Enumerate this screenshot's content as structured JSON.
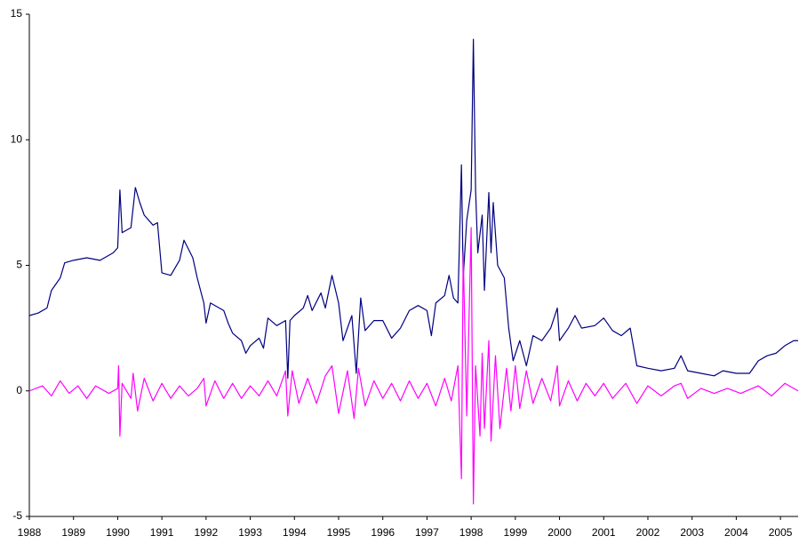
{
  "chart_data": {
    "type": "line",
    "xlim": [
      1988,
      2005.4
    ],
    "xticks": [
      1988,
      1989,
      1990,
      1991,
      1992,
      1993,
      1994,
      1995,
      1996,
      1997,
      1998,
      1999,
      2000,
      2001,
      2002,
      2003,
      2004,
      2005
    ],
    "ylim": [
      -5,
      15
    ],
    "yticks": [
      -5,
      0,
      5,
      10,
      15
    ],
    "grid": false,
    "series": [
      {
        "color": "#000080",
        "x": [
          1988.0,
          1988.2,
          1988.4,
          1988.5,
          1988.7,
          1988.8,
          1989.0,
          1989.3,
          1989.6,
          1989.9,
          1990.0,
          1990.05,
          1990.1,
          1990.3,
          1990.4,
          1990.5,
          1990.6,
          1990.8,
          1990.9,
          1991.0,
          1991.2,
          1991.4,
          1991.5,
          1991.7,
          1991.8,
          1991.95,
          1992.0,
          1992.1,
          1992.4,
          1992.5,
          1992.6,
          1992.8,
          1992.9,
          1993.0,
          1993.2,
          1993.3,
          1993.4,
          1993.6,
          1993.8,
          1993.85,
          1993.9,
          1994.0,
          1994.2,
          1994.3,
          1994.4,
          1994.6,
          1994.7,
          1994.85,
          1995.0,
          1995.1,
          1995.3,
          1995.4,
          1995.5,
          1995.6,
          1995.8,
          1996.0,
          1996.2,
          1996.4,
          1996.6,
          1996.8,
          1997.0,
          1997.1,
          1997.2,
          1997.4,
          1997.5,
          1997.6,
          1997.7,
          1997.78,
          1997.82,
          1997.9,
          1998.0,
          1998.05,
          1998.1,
          1998.15,
          1998.25,
          1998.3,
          1998.4,
          1998.45,
          1998.5,
          1998.6,
          1998.75,
          1998.85,
          1998.95,
          1999.1,
          1999.25,
          1999.4,
          1999.6,
          1999.8,
          1999.95,
          2000.0,
          2000.2,
          2000.35,
          2000.5,
          2000.8,
          2001.0,
          2001.2,
          2001.4,
          2001.6,
          2001.75,
          2002.0,
          2002.3,
          2002.6,
          2002.75,
          2002.9,
          2003.2,
          2003.5,
          2003.7,
          2004.0,
          2004.3,
          2004.5,
          2004.7,
          2004.9,
          2005.1,
          2005.3,
          2005.4
        ],
        "values": [
          3.0,
          3.1,
          3.3,
          4.0,
          4.5,
          5.1,
          5.2,
          5.3,
          5.2,
          5.5,
          5.7,
          8.0,
          6.3,
          6.5,
          8.1,
          7.5,
          7.0,
          6.6,
          6.7,
          4.7,
          4.6,
          5.2,
          6.0,
          5.3,
          4.5,
          3.5,
          2.7,
          3.5,
          3.2,
          2.7,
          2.3,
          2.0,
          1.5,
          1.8,
          2.1,
          1.7,
          2.9,
          2.6,
          2.8,
          0.5,
          2.8,
          3.0,
          3.3,
          3.8,
          3.2,
          3.9,
          3.3,
          4.6,
          3.5,
          2.0,
          3.0,
          0.7,
          3.7,
          2.4,
          2.8,
          2.8,
          2.1,
          2.5,
          3.2,
          3.4,
          3.2,
          2.2,
          3.5,
          3.8,
          4.6,
          3.7,
          3.5,
          9.0,
          4.5,
          6.8,
          8.0,
          14.0,
          8.0,
          5.5,
          7.0,
          4.0,
          7.9,
          5.5,
          7.5,
          5.0,
          4.5,
          2.5,
          1.2,
          2.0,
          1.0,
          2.2,
          2.0,
          2.5,
          3.3,
          2.0,
          2.5,
          3.0,
          2.5,
          2.6,
          2.9,
          2.4,
          2.2,
          2.5,
          1.0,
          0.9,
          0.8,
          0.9,
          1.4,
          0.8,
          0.7,
          0.6,
          0.8,
          0.7,
          0.7,
          1.2,
          1.4,
          1.5,
          1.8,
          2.0,
          2.0
        ]
      },
      {
        "color": "#ff00ff",
        "x": [
          1988.0,
          1988.3,
          1988.5,
          1988.7,
          1988.9,
          1989.1,
          1989.3,
          1989.5,
          1989.8,
          1990.0,
          1990.02,
          1990.05,
          1990.1,
          1990.3,
          1990.35,
          1990.45,
          1990.6,
          1990.8,
          1991.0,
          1991.2,
          1991.4,
          1991.6,
          1991.8,
          1991.95,
          1992.0,
          1992.2,
          1992.4,
          1992.6,
          1992.8,
          1993.0,
          1993.2,
          1993.4,
          1993.6,
          1993.8,
          1993.85,
          1993.95,
          1994.1,
          1994.3,
          1994.5,
          1994.7,
          1994.85,
          1995.0,
          1995.2,
          1995.35,
          1995.45,
          1995.6,
          1995.8,
          1996.0,
          1996.2,
          1996.4,
          1996.6,
          1996.8,
          1997.0,
          1997.2,
          1997.4,
          1997.55,
          1997.7,
          1997.78,
          1997.82,
          1997.9,
          1998.0,
          1998.05,
          1998.1,
          1998.2,
          1998.25,
          1998.3,
          1998.4,
          1998.45,
          1998.55,
          1998.65,
          1998.8,
          1998.9,
          1999.0,
          1999.1,
          1999.25,
          1999.4,
          1999.6,
          1999.8,
          1999.95,
          2000.0,
          2000.2,
          2000.4,
          2000.6,
          2000.8,
          2001.0,
          2001.2,
          2001.5,
          2001.75,
          2002.0,
          2002.3,
          2002.6,
          2002.75,
          2002.9,
          2003.2,
          2003.5,
          2003.8,
          2004.1,
          2004.5,
          2004.8,
          2005.1,
          2005.4
        ],
        "values": [
          0,
          0.2,
          -0.2,
          0.4,
          -0.1,
          0.2,
          -0.3,
          0.2,
          -0.1,
          0.1,
          1.0,
          -1.8,
          0.3,
          -0.3,
          0.7,
          -0.8,
          0.5,
          -0.4,
          0.3,
          -0.3,
          0.2,
          -0.2,
          0.1,
          0.5,
          -0.6,
          0.4,
          -0.3,
          0.3,
          -0.3,
          0.2,
          -0.2,
          0.4,
          -0.2,
          0.8,
          -1.0,
          0.8,
          -0.5,
          0.5,
          -0.5,
          0.6,
          1.0,
          -0.9,
          0.8,
          -1.1,
          0.9,
          -0.6,
          0.4,
          -0.3,
          0.3,
          -0.4,
          0.4,
          -0.3,
          0.3,
          -0.6,
          0.5,
          -0.4,
          1.0,
          -3.5,
          5.5,
          -1.0,
          6.5,
          -4.5,
          1.0,
          -1.8,
          1.5,
          -1.5,
          2.0,
          -2.0,
          1.4,
          -1.5,
          0.9,
          -0.8,
          1.0,
          -0.7,
          0.8,
          -0.5,
          0.5,
          -0.4,
          1.0,
          -0.6,
          0.4,
          -0.4,
          0.3,
          -0.2,
          0.3,
          -0.3,
          0.3,
          -0.5,
          0.2,
          -0.2,
          0.2,
          0.3,
          -0.3,
          0.1,
          -0.1,
          0.1,
          -0.1,
          0.2,
          -0.2,
          0.3,
          0.0
        ]
      }
    ]
  }
}
